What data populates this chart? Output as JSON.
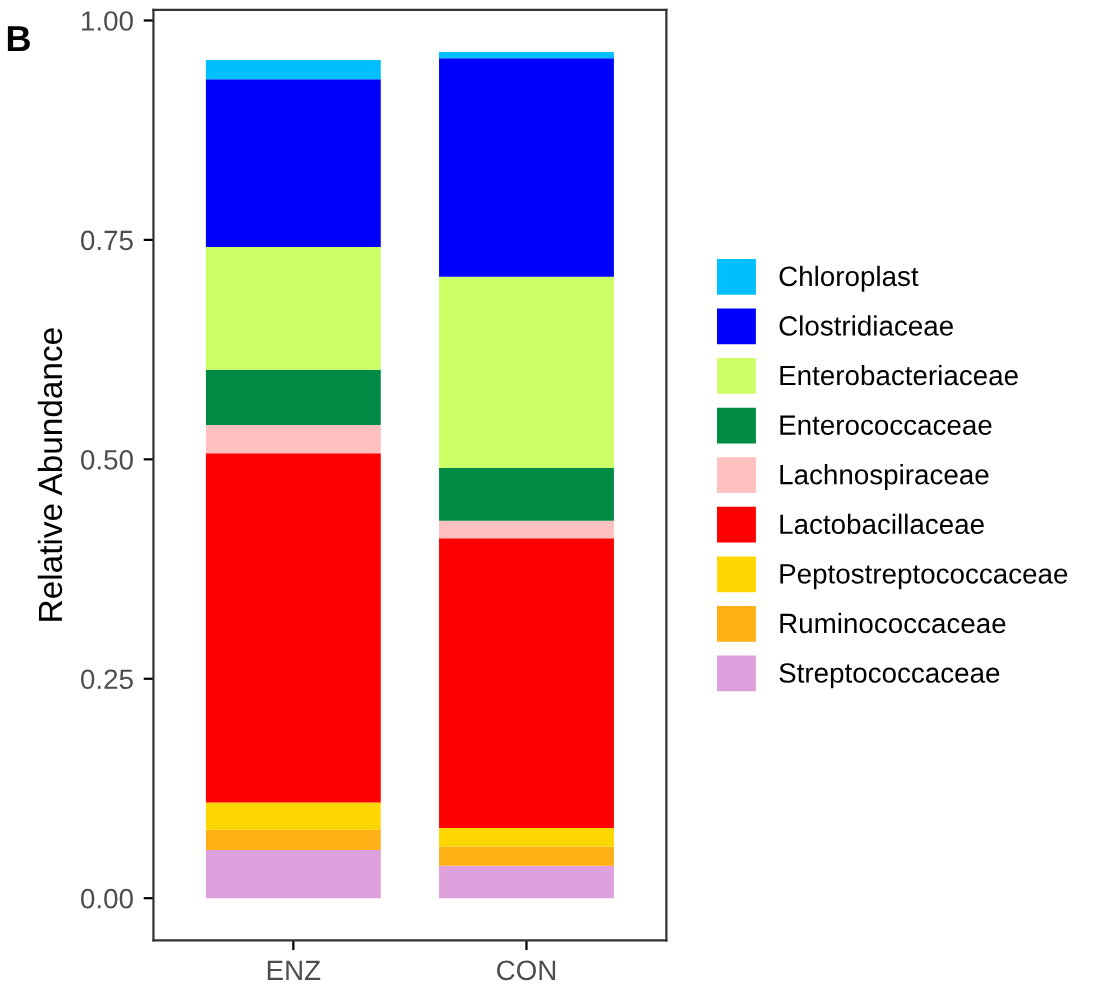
{
  "chart_data": {
    "type": "bar",
    "stacked": true,
    "ylabel": "Relative Abundance",
    "annotations": [
      "B"
    ],
    "categories": [
      "ENZ",
      "CON"
    ],
    "series": [
      {
        "name": "Streptococcaceae",
        "color": "#dda0dd",
        "values": [
          0.055,
          0.037
        ]
      },
      {
        "name": "Ruminococcaceae",
        "color": "#ffb014",
        "values": [
          0.023,
          0.022
        ]
      },
      {
        "name": "Peptostreptococcaceae",
        "color": "#ffd700",
        "values": [
          0.031,
          0.021
        ]
      },
      {
        "name": "Lactobacillaceae",
        "color": "#ff0000",
        "values": [
          0.398,
          0.33
        ]
      },
      {
        "name": "Lachnospiraceae",
        "color": "#ffc0c0",
        "values": [
          0.032,
          0.02
        ]
      },
      {
        "name": "Enterococcaceae",
        "color": "#008b45",
        "values": [
          0.063,
          0.06
        ]
      },
      {
        "name": "Enterobacteriaceae",
        "color": "#ccff66",
        "values": [
          0.14,
          0.218
        ]
      },
      {
        "name": "Clostridiaceae",
        "color": "#0000ff",
        "values": [
          0.191,
          0.249
        ]
      },
      {
        "name": "Chloroplast",
        "color": "#00bfff",
        "values": [
          0.022,
          0.007
        ]
      }
    ],
    "ylim": [
      -0.048,
      1.012
    ],
    "yticks": [
      {
        "value": 0,
        "label": "0.00"
      },
      {
        "value": 0.25,
        "label": "0.25"
      },
      {
        "value": 0.5,
        "label": "0.50"
      },
      {
        "value": 0.75,
        "label": "0.75"
      },
      {
        "value": 1,
        "label": "1.00"
      }
    ],
    "grid": false,
    "legend": "right"
  }
}
